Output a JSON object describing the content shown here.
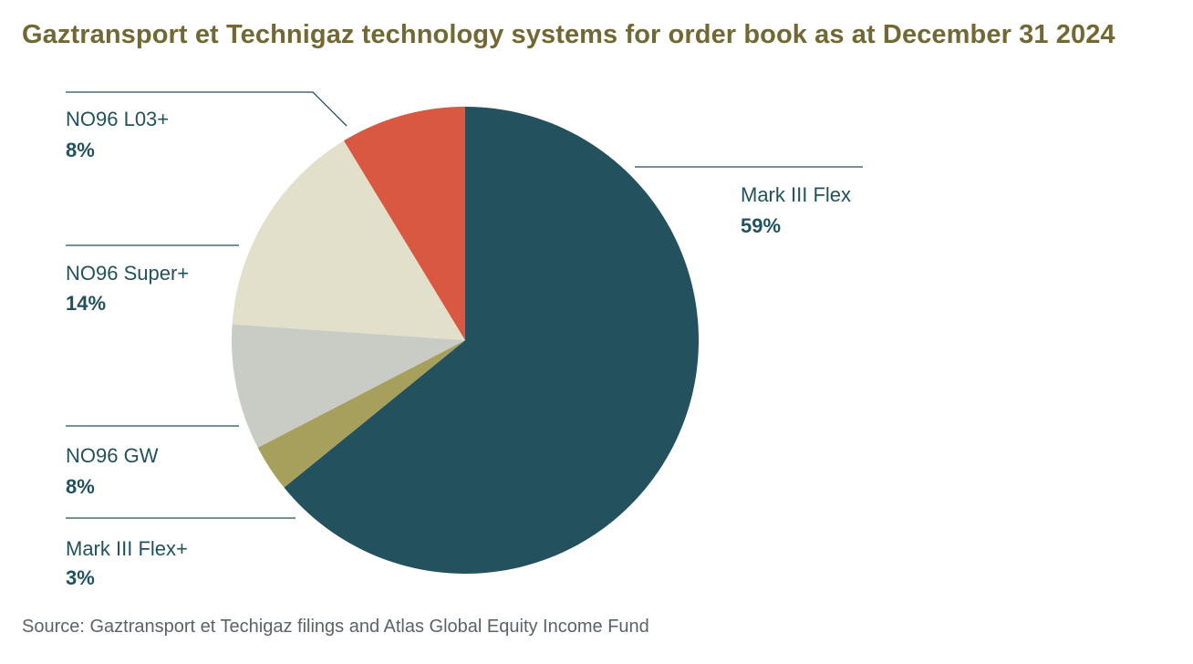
{
  "title": "Gaztransport et Technigaz technology systems for order book as at December 31 2024",
  "source": "Source: Gaztransport et Techigaz filings and Atlas Global Equity Income Fund",
  "chart_data": {
    "type": "pie",
    "title": "Gaztransport et Technigaz technology systems for order book as at December 31 2024",
    "slices": [
      {
        "label": "Mark III Flex",
        "value": 59,
        "display": "59%",
        "color": "#23525e"
      },
      {
        "label": "Mark III Flex+",
        "value": 3,
        "display": "3%",
        "color": "#a6a05c"
      },
      {
        "label": "NO96 GW",
        "value": 8,
        "display": "8%",
        "color": "#c8ccc5"
      },
      {
        "label": "NO96 Super+",
        "value": 14,
        "display": "14%",
        "color": "#e2dfcb"
      },
      {
        "label": "NO96 L03+",
        "value": 8,
        "display": "8%",
        "color": "#d95842"
      }
    ],
    "legend": "callout labels"
  }
}
